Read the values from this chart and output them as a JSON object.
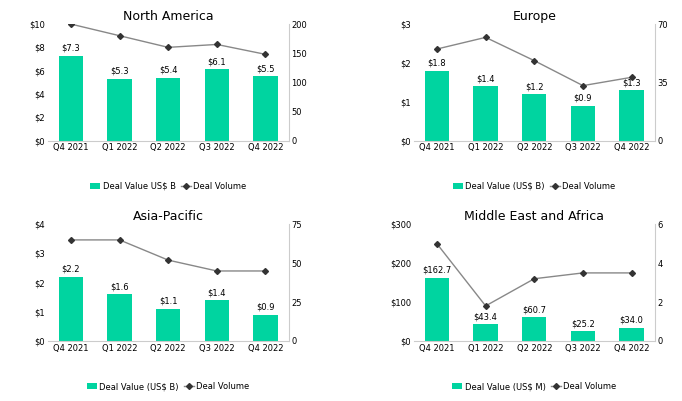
{
  "regions": [
    "North America",
    "Europe",
    "Asia-Pacific",
    "Middle East and Africa"
  ],
  "categories": [
    "Q4 2021",
    "Q1 2022",
    "Q2 2022",
    "Q3 2022",
    "Q4 2022"
  ],
  "bar_values": {
    "North America": [
      7.3,
      5.3,
      5.4,
      6.1,
      5.5
    ],
    "Europe": [
      1.8,
      1.4,
      1.2,
      0.9,
      1.3
    ],
    "Asia-Pacific": [
      2.2,
      1.6,
      1.1,
      1.4,
      0.9
    ],
    "Middle East and Africa": [
      162.7,
      43.4,
      60.7,
      25.2,
      34.0
    ]
  },
  "line_values": {
    "North America": [
      200,
      180,
      160,
      165,
      148
    ],
    "Europe": [
      55,
      62,
      48,
      33,
      38
    ],
    "Asia-Pacific": [
      65,
      65,
      52,
      45,
      45
    ],
    "Middle East and Africa": [
      5,
      1.8,
      3.2,
      3.5,
      3.5
    ]
  },
  "bar_labels": {
    "North America": [
      "$7.3",
      "$5.3",
      "$5.4",
      "$6.1",
      "$5.5"
    ],
    "Europe": [
      "$1.8",
      "$1.4",
      "$1.2",
      "$0.9",
      "$1.3"
    ],
    "Asia-Pacific": [
      "$2.2",
      "$1.6",
      "$1.1",
      "$1.4",
      "$0.9"
    ],
    "Middle East and Africa": [
      "$162.7",
      "$43.4",
      "$60.7",
      "$25.2",
      "$34.0"
    ]
  },
  "ylim_left": {
    "North America": [
      0,
      10
    ],
    "Europe": [
      0,
      3
    ],
    "Asia-Pacific": [
      0,
      4
    ],
    "Middle East and Africa": [
      0,
      300
    ]
  },
  "ylim_right": {
    "North America": [
      0,
      200
    ],
    "Europe": [
      0,
      70
    ],
    "Asia-Pacific": [
      0,
      75
    ],
    "Middle East and Africa": [
      0,
      6
    ]
  },
  "yticks_left": {
    "North America": [
      0,
      2,
      4,
      6,
      8,
      10
    ],
    "Europe": [
      0,
      1,
      2,
      3
    ],
    "Asia-Pacific": [
      0,
      1,
      2,
      3,
      4
    ],
    "Middle East and Africa": [
      0,
      100,
      200,
      300
    ]
  },
  "yticks_right": {
    "North America": [
      0,
      50,
      100,
      150,
      200
    ],
    "Europe": [
      0,
      35,
      70
    ],
    "Asia-Pacific": [
      0,
      25,
      50,
      75
    ],
    "Middle East and Africa": [
      0,
      2,
      4,
      6
    ]
  },
  "yticklabels_left": {
    "North America": [
      "$0",
      "$2",
      "$4",
      "$6",
      "$8",
      "$10"
    ],
    "Europe": [
      "$0",
      "$1",
      "$2",
      "$3"
    ],
    "Asia-Pacific": [
      "$0",
      "$1",
      "$2",
      "$3",
      "$4"
    ],
    "Middle East and Africa": [
      "$0",
      "$100",
      "$200",
      "$300"
    ]
  },
  "legend_label_bar": {
    "North America": "Deal Value US$ B",
    "Europe": "Deal Value (US$ B)",
    "Asia-Pacific": "Deal Value (US$ B)",
    "Middle East and Africa": "Deal Value (US$ M)"
  },
  "bar_color": "#00d4a0",
  "line_color": "#888888",
  "marker_color": "#333333",
  "background_color": "#ffffff",
  "title_fontsize": 9,
  "label_fontsize": 6,
  "tick_fontsize": 6,
  "legend_fontsize": 6
}
